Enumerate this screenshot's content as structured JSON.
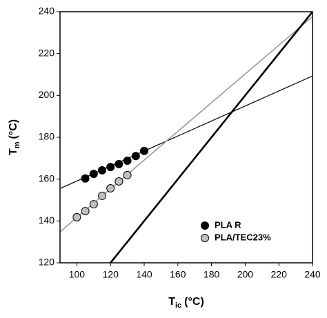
{
  "chart_data": {
    "type": "scatter",
    "x_label": {
      "main": "T",
      "sub": "ic",
      "unit": "(°C)"
    },
    "y_label": {
      "main": "T",
      "sub": "m",
      "unit": "(°C)"
    },
    "xlim": [
      90,
      240
    ],
    "xticks": [
      100,
      120,
      140,
      160,
      180,
      200,
      220,
      240
    ],
    "ylim": [
      120,
      240
    ],
    "yticks": [
      120,
      140,
      160,
      180,
      200,
      220,
      240
    ],
    "legend": "lower right",
    "series": [
      {
        "name": "PLA R",
        "color": "#000000",
        "x": [
          105,
          110,
          115,
          120,
          125,
          130,
          135,
          140
        ],
        "values": [
          160.3,
          162.5,
          164.2,
          165.8,
          167.2,
          168.8,
          171,
          173.5
        ]
      },
      {
        "name": "PLA/TEC23%",
        "color": "#c0c0c0",
        "x": [
          100,
          105,
          110,
          115,
          120,
          125,
          130
        ],
        "values": [
          141.8,
          144.7,
          148,
          152,
          155.6,
          158.9,
          161.9
        ]
      }
    ],
    "lines": [
      {
        "color": "#000000",
        "width": 1.2,
        "x": [
          90,
          240
        ],
        "values": [
          155.5,
          209.3
        ]
      },
      {
        "color": "#999999",
        "width": 1.6,
        "x": [
          90,
          240
        ],
        "values": [
          134.8,
          237.7
        ]
      },
      {
        "color": "#000000",
        "width": 2.6,
        "x": [
          120,
          240
        ],
        "values": [
          120,
          240
        ]
      }
    ]
  }
}
